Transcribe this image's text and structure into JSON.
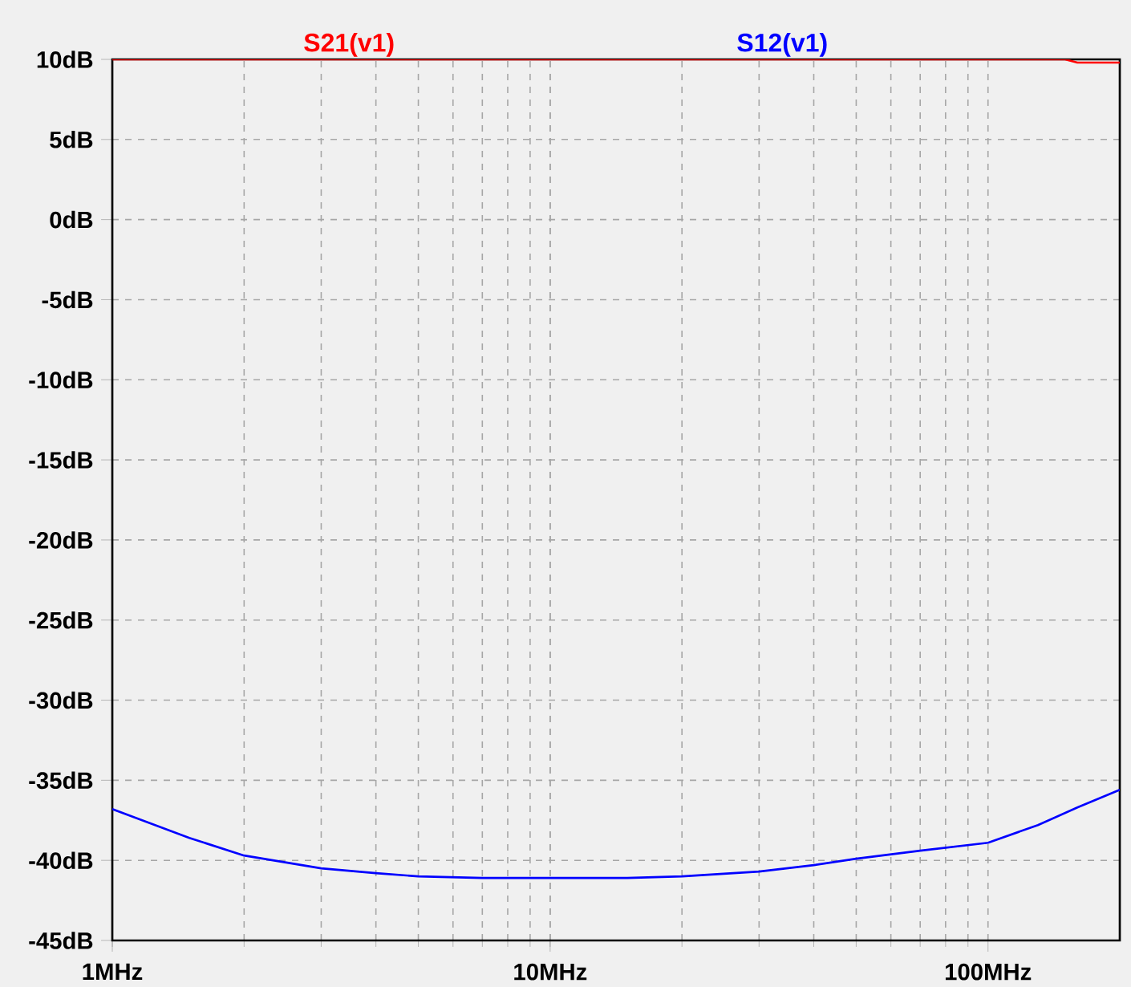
{
  "chart_data": {
    "type": "line",
    "log": "x",
    "grid": true,
    "xlim": [
      1,
      200
    ],
    "ylim": [
      -45,
      10
    ],
    "xticks": [
      {
        "value": 1,
        "label": "1MHz"
      },
      {
        "value": 10,
        "label": "10MHz"
      },
      {
        "value": 100,
        "label": "100MHz"
      }
    ],
    "yticks": [
      {
        "value": 10,
        "label": "10dB"
      },
      {
        "value": 5,
        "label": "5dB"
      },
      {
        "value": 0,
        "label": "0dB"
      },
      {
        "value": -5,
        "label": "-5dB"
      },
      {
        "value": -10,
        "label": "-10dB"
      },
      {
        "value": -15,
        "label": "-15dB"
      },
      {
        "value": -20,
        "label": "-20dB"
      },
      {
        "value": -25,
        "label": "-25dB"
      },
      {
        "value": -30,
        "label": "-30dB"
      },
      {
        "value": -35,
        "label": "-35dB"
      },
      {
        "value": -40,
        "label": "-40dB"
      },
      {
        "value": -45,
        "label": "-45dB"
      }
    ],
    "series": [
      {
        "name": "S21(v1)",
        "color": "#ff0000",
        "x": [
          1,
          10,
          100,
          150,
          160,
          200
        ],
        "values": [
          10,
          10,
          10,
          10,
          9.8,
          9.8
        ]
      },
      {
        "name": "S12(v1)",
        "color": "#0000ff",
        "x": [
          1,
          1.5,
          2,
          3,
          4,
          5,
          7,
          10,
          15,
          20,
          30,
          40,
          50,
          70,
          100,
          130,
          160,
          200
        ],
        "values": [
          -36.8,
          -38.6,
          -39.7,
          -40.5,
          -40.8,
          -41,
          -41.1,
          -41.1,
          -41.1,
          -41,
          -40.7,
          -40.3,
          -39.9,
          -39.4,
          -38.9,
          -37.8,
          -36.7,
          -35.6
        ]
      }
    ]
  }
}
